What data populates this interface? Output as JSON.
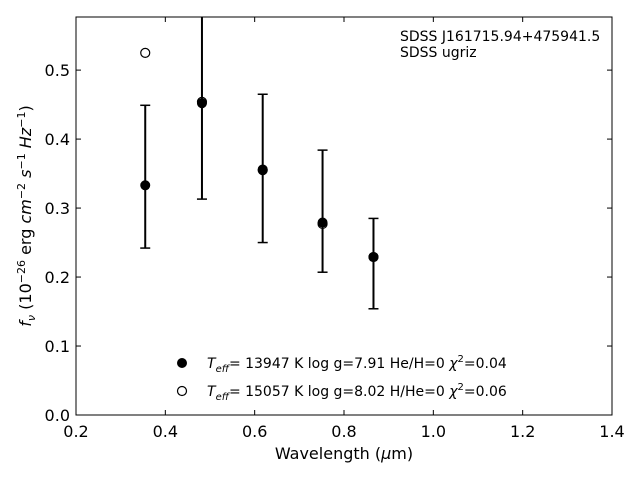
{
  "chart_data": {
    "type": "scatter",
    "xlabel": "Wavelength (μm)",
    "ylabel": "f_ν (10^-26 erg cm^-2 s^-1 Hz^-1)",
    "xlim": [
      0.2,
      1.4
    ],
    "ylim": [
      0.0,
      0.577
    ],
    "xticks": [
      "0.2",
      "0.4",
      "0.6",
      "0.8",
      "1.0",
      "1.2",
      "1.4"
    ],
    "yticks": [
      "0.0",
      "0.1",
      "0.2",
      "0.3",
      "0.4",
      "0.5"
    ],
    "annotation": [
      "SDSS J161715.94+475941.5",
      "SDSS ugriz"
    ],
    "observed": {
      "x": [
        0.355,
        0.482,
        0.618,
        0.752,
        0.866
      ],
      "y": [
        0.333,
        0.45,
        0.358,
        0.281,
        0.228
      ],
      "err_low": [
        0.242,
        0.313,
        0.25,
        0.207,
        0.154
      ],
      "err_high": [
        0.449,
        0.6,
        0.465,
        0.384,
        0.285
      ]
    },
    "series": [
      {
        "name": "T_eff= 13947 K  log g=7.91  He/H=0  χ²=0.04",
        "marker": "filled-circle",
        "x": [
          0.355,
          0.482,
          0.618,
          0.752,
          0.866
        ],
        "y": [
          0.333,
          0.452,
          0.356,
          0.279,
          0.229
        ]
      },
      {
        "name": "T_eff= 15057 K  log g=8.02  H/He=0  χ²=0.06",
        "marker": "open-circle",
        "x": [
          0.355,
          0.482,
          0.618,
          0.752,
          0.866
        ],
        "y": [
          0.525,
          0.454,
          0.355,
          0.277,
          0.229
        ]
      }
    ],
    "legend_position": "bottom-center",
    "grid": false,
    "colors": {
      "marker": "#000000",
      "axes": "#000000",
      "background": "#ffffff"
    }
  }
}
